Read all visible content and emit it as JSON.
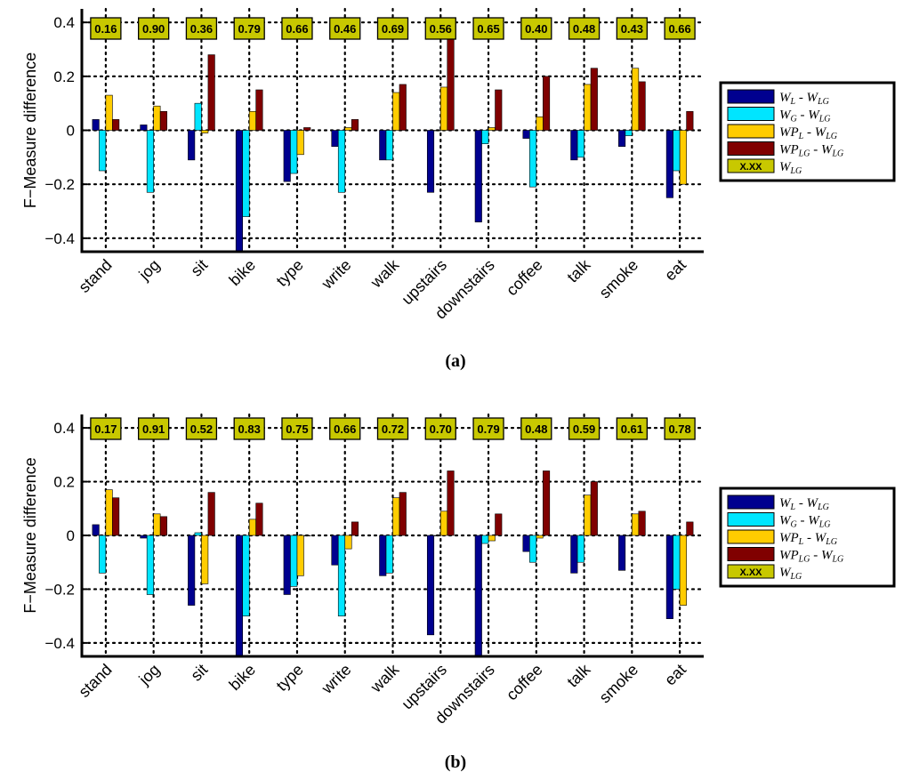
{
  "colors": {
    "wl": "#00008f",
    "wg": "#00e5ff",
    "wpl": "#ffcc00",
    "wplg": "#800000",
    "wlg_box": "#c8c800"
  },
  "chart_data": [
    {
      "type": "bar",
      "caption": "(a)",
      "ylabel": "F−Measure difference",
      "ylim": [
        -0.45,
        0.45
      ],
      "yticks": [
        0.4,
        0.2,
        0,
        -0.2,
        -0.4
      ],
      "yticklabels": [
        "0.4",
        "0.2",
        "0",
        "−0.2",
        "−0.4"
      ],
      "grid": true,
      "categories": [
        "stand",
        "jog",
        "sit",
        "bike",
        "type",
        "write",
        "walk",
        "upstairs",
        "downstairs",
        "coffee",
        "talk",
        "smoke",
        "eat"
      ],
      "series": [
        {
          "name": "W_L - W_LG",
          "values": [
            0.04,
            0.02,
            -0.11,
            -0.45,
            -0.19,
            -0.06,
            -0.11,
            -0.23,
            -0.34,
            -0.03,
            -0.11,
            -0.06,
            -0.25
          ]
        },
        {
          "name": "W_G - W_LG",
          "values": [
            -0.15,
            -0.23,
            0.1,
            -0.32,
            -0.16,
            -0.23,
            -0.11,
            0.0,
            -0.05,
            -0.21,
            -0.1,
            -0.02,
            -0.15
          ]
        },
        {
          "name": "WP_L - W_LG",
          "values": [
            0.13,
            0.09,
            -0.01,
            0.07,
            -0.09,
            0.01,
            0.14,
            0.16,
            0.01,
            0.05,
            0.17,
            0.23,
            -0.2
          ]
        },
        {
          "name": "WP_LG - W_LG",
          "values": [
            0.04,
            0.07,
            0.28,
            0.15,
            0.01,
            0.04,
            0.17,
            0.35,
            0.15,
            0.2,
            0.23,
            0.18,
            0.07
          ]
        }
      ],
      "wlg_values": [
        "0.16",
        "0.90",
        "0.36",
        "0.79",
        "0.66",
        "0.46",
        "0.69",
        "0.56",
        "0.65",
        "0.40",
        "0.48",
        "0.43",
        "0.66"
      ],
      "legend": {
        "position": "right",
        "entries": [
          {
            "main": "W",
            "sub": "L",
            "suffix_main": " - W",
            "suffix_sub": "LG"
          },
          {
            "main": "W",
            "sub": "G",
            "suffix_main": " - W",
            "suffix_sub": "LG"
          },
          {
            "main": "WP",
            "sub": "L",
            "suffix_main": " - W",
            "suffix_sub": "LG"
          },
          {
            "main": "WP",
            "sub": "LG",
            "suffix_main": " - W",
            "suffix_sub": "LG"
          },
          {
            "main": "W",
            "sub": "LG",
            "suffix_main": "",
            "suffix_sub": "",
            "box_text": "X.XX"
          }
        ]
      }
    },
    {
      "type": "bar",
      "caption": "(b)",
      "ylabel": "F−Measure difference",
      "ylim": [
        -0.45,
        0.45
      ],
      "yticks": [
        0.4,
        0.2,
        0,
        -0.2,
        -0.4
      ],
      "yticklabels": [
        "0.4",
        "0.2",
        "0",
        "−0.2",
        "−0.4"
      ],
      "grid": true,
      "categories": [
        "stand",
        "jog",
        "sit",
        "bike",
        "type",
        "write",
        "walk",
        "upstairs",
        "downstairs",
        "coffee",
        "talk",
        "smoke",
        "eat"
      ],
      "series": [
        {
          "name": "W_L - W_LG",
          "values": [
            0.04,
            -0.01,
            -0.26,
            -0.45,
            -0.22,
            -0.11,
            -0.15,
            -0.37,
            -0.45,
            -0.06,
            -0.14,
            -0.13,
            -0.31
          ]
        },
        {
          "name": "W_G - W_LG",
          "values": [
            -0.14,
            -0.22,
            0.01,
            -0.3,
            -0.19,
            -0.3,
            -0.14,
            0.0,
            -0.03,
            -0.1,
            -0.1,
            0.0,
            -0.2
          ]
        },
        {
          "name": "WP_L - W_LG",
          "values": [
            0.17,
            0.08,
            -0.18,
            0.06,
            -0.15,
            -0.05,
            0.14,
            0.09,
            -0.02,
            -0.01,
            0.15,
            0.08,
            -0.26
          ]
        },
        {
          "name": "WP_LG - W_LG",
          "values": [
            0.14,
            0.07,
            0.16,
            0.12,
            0.0,
            0.05,
            0.16,
            0.24,
            0.08,
            0.24,
            0.2,
            0.09,
            0.05
          ]
        }
      ],
      "wlg_values": [
        "0.17",
        "0.91",
        "0.52",
        "0.83",
        "0.75",
        "0.66",
        "0.72",
        "0.70",
        "0.79",
        "0.48",
        "0.59",
        "0.61",
        "0.78"
      ],
      "legend": {
        "position": "right",
        "entries": [
          {
            "main": "W",
            "sub": "L",
            "suffix_main": " - W",
            "suffix_sub": "LG"
          },
          {
            "main": "W",
            "sub": "G",
            "suffix_main": " - W",
            "suffix_sub": "LG"
          },
          {
            "main": "WP",
            "sub": "L",
            "suffix_main": " - W",
            "suffix_sub": "LG"
          },
          {
            "main": "WP",
            "sub": "LG",
            "suffix_main": " - W",
            "suffix_sub": "LG"
          },
          {
            "main": "W",
            "sub": "LG",
            "suffix_main": "",
            "suffix_sub": "",
            "box_text": "X.XX"
          }
        ]
      }
    }
  ]
}
